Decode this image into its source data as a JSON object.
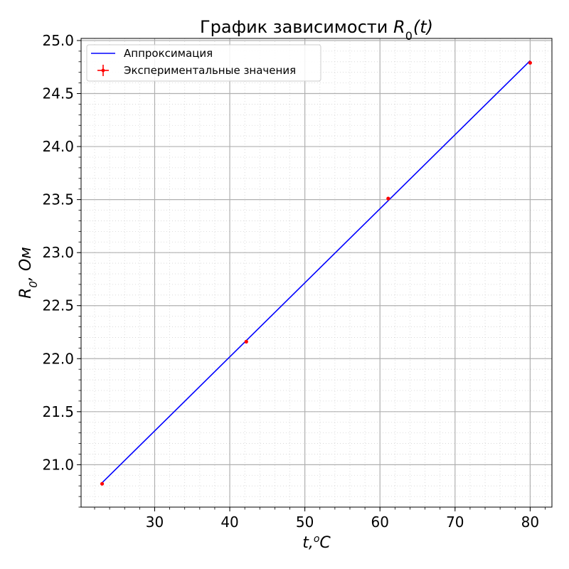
{
  "chart_data": {
    "type": "line",
    "title": "График зависимости R0(t)",
    "title_parts": {
      "prefix": "График зависимости ",
      "var": "R",
      "sub": "0",
      "suffix": "(t)"
    },
    "xlabel": "t,°C",
    "xlabel_parts": {
      "var": "t",
      "sep": ",",
      "sup": "o",
      "unit": "C"
    },
    "ylabel": "R0, Ом",
    "ylabel_parts": {
      "var": "R",
      "sub": "0",
      "rest": ", Ом"
    },
    "xlim": [
      20.2,
      82.9
    ],
    "ylim": [
      20.6,
      25.02
    ],
    "xticks": [
      30,
      40,
      50,
      60,
      70,
      80
    ],
    "xtick_labels": [
      "30",
      "40",
      "50",
      "60",
      "70",
      "80"
    ],
    "yticks": [
      21.0,
      21.5,
      22.0,
      22.5,
      23.0,
      23.5,
      24.0,
      24.5,
      25.0
    ],
    "ytick_labels": [
      "21.0",
      "21.5",
      "22.0",
      "22.5",
      "23.0",
      "23.5",
      "24.0",
      "24.5",
      "25.0"
    ],
    "x_minor_step": 2,
    "y_minor_step": 0.1,
    "grid": true,
    "minor_grid": true,
    "legend_position": "top-left",
    "series": [
      {
        "name": "Аппроксимация",
        "kind": "line",
        "color": "#0000ff",
        "x": [
          23.0,
          80.0
        ],
        "y": [
          20.83,
          24.81
        ]
      },
      {
        "name": "Экспериментальные значения",
        "kind": "errorbar-points",
        "color": "#ff0000",
        "x": [
          23.0,
          42.2,
          61.1,
          80.0
        ],
        "y": [
          20.82,
          22.16,
          23.51,
          24.79
        ]
      }
    ]
  }
}
